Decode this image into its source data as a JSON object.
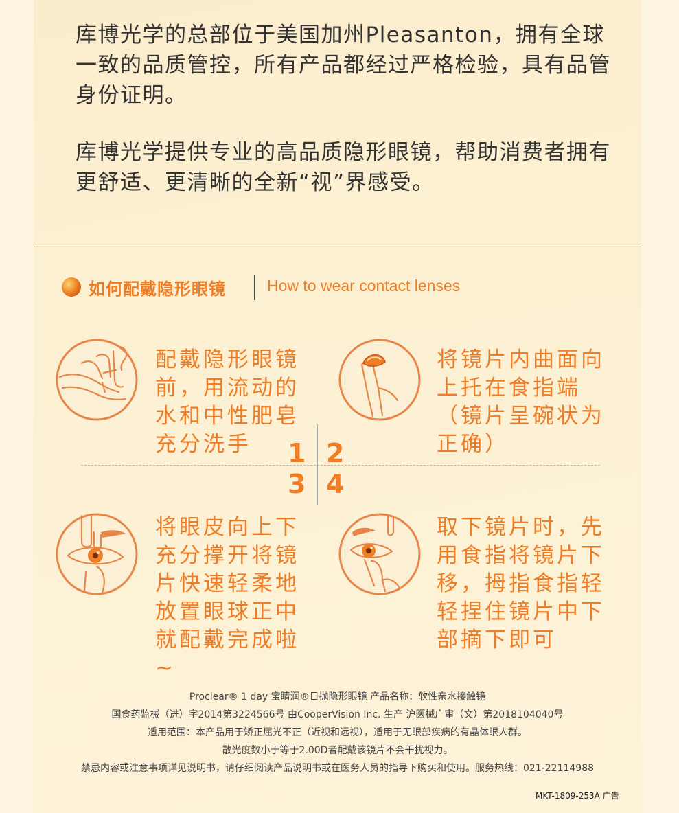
{
  "intro": {
    "p1": "库博光学的总部位于美国加州Pleasanton，拥有全球一致的品质管控，所有产品都经过严格检验，具有品管身份证明。",
    "p2": "库博光学提供专业的高品质隐形眼镜，帮助消费者拥有更舒适、更清晰的全新“视”界感受。"
  },
  "section": {
    "title_cn": "如何配戴隐形眼镜",
    "title_en": "How to wear contact lenses"
  },
  "steps": [
    {
      "number": "1",
      "text": "配戴隐形眼镜前，用流动的水和中性肥皂充分洗手",
      "icon": "hand-washing-icon"
    },
    {
      "number": "2",
      "text": "将镜片内曲面向上托在食指端（镜片呈碗状为正确）",
      "icon": "lens-on-finger-icon"
    },
    {
      "number": "3",
      "text": "将眼皮向上下充分撑开将镜片快速轻柔地放置眼球正中就配戴完成啦~",
      "icon": "insert-lens-eye-icon"
    },
    {
      "number": "4",
      "text": "取下镜片时，先用食指将镜片下移，拇指食指轻轻捏住镜片中下部摘下即可",
      "icon": "remove-lens-eye-icon"
    }
  ],
  "footer": {
    "line1": "Proclear® 1 day 宝睛润®日抛隐形眼镜  产品名称：软性亲水接触镜",
    "line2": "国食药监械（进）字2014第3224566号  由CooperVision Inc. 生产  沪医械广审（文）第2018104040号",
    "line3": "适用范围：本产品用于矫正屈光不正（近视和远视），适用于无眼部疾病的有晶体眼人群。",
    "line4": "散光度数小于等于2.00D者配戴该镜片不会干扰视力。",
    "line5": "禁忌内容或注意事项详见说明书，请仔细阅读产品说明书或在医务人员的指导下购买和使用。服务热线：021-22114988",
    "code": "MKT-1809-253A   广告"
  },
  "colors": {
    "accent": "#ef7d26",
    "background": "#fcf0d2",
    "text": "#333333"
  }
}
